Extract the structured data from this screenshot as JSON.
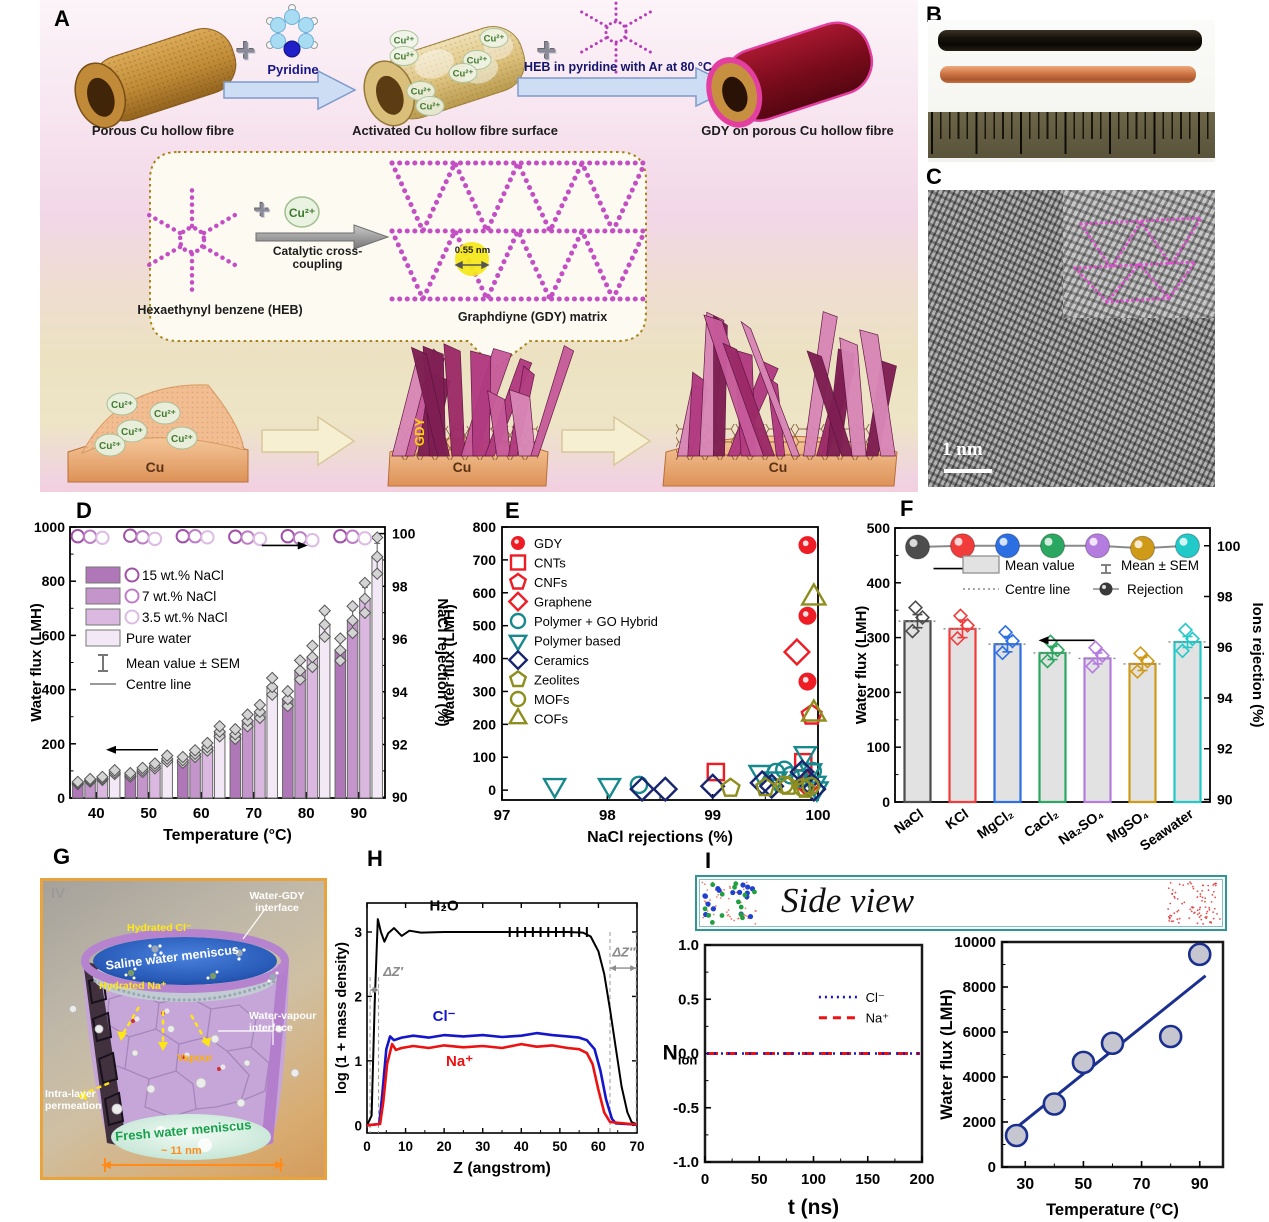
{
  "figure": {
    "plus_sign": "+"
  },
  "panelA": {
    "label": "A",
    "steps": {
      "porous_label": "Porous Cu hollow fibre",
      "pyridine_label": "Pyridine",
      "activated_label": "Activated Cu hollow fibre surface",
      "heb_arrow_label": "HEB in pyridine with Ar at 80 °C",
      "gdy_tube_label": "GDY on porous Cu hollow fibre"
    },
    "bubble": {
      "heb_name": "Hexaethynyl benzene (HEB)",
      "cu_ion": "Cu²⁺",
      "arrow_label": "Catalytic cross-coupling",
      "pore_size": "0.55 nm",
      "matrix_caption": "Graphdiyne (GDY) matrix"
    },
    "growth": {
      "cu_label": "Cu",
      "cu_ion": "Cu²⁺",
      "gdy_flake_label": "GDY"
    }
  },
  "panelB": {
    "label": "B"
  },
  "panelC": {
    "label": "C",
    "scale_bar": "1 nm"
  },
  "panelG": {
    "label": "G",
    "roman": "IV",
    "water_gdy": "Water-GDY interface",
    "hydrated_cl": "Hydrated Cl⁻",
    "saline": "Saline water meniscus",
    "hydrated_na": "Hydrated Na⁺",
    "water_vapour": "Water-vapour interface",
    "vapour": "Vapour",
    "intra": "Intra-layer permeation",
    "fresh": "Fresh water meniscus",
    "width_note": "~ 11 nm"
  },
  "panelI": {
    "label": "I",
    "side_view_label": "Side view"
  },
  "panelD_label": "D",
  "panelE_label": "E",
  "panelF_label": "F",
  "panelH_label": "H",
  "chart_data": [
    {
      "id": "D",
      "type": "bar",
      "xlabel": "Temperature (°C)",
      "ylabel_left": "Water flux (LMH)",
      "ylabel_right": "NaCl rejection (%)",
      "ylim_left": [
        0,
        1000
      ],
      "yticks_left": [
        0,
        200,
        400,
        600,
        800,
        1000
      ],
      "ylim_right": [
        90,
        100
      ],
      "yticks_right": [
        90,
        92,
        94,
        96,
        98,
        100
      ],
      "categories": [
        40,
        50,
        60,
        70,
        80,
        90
      ],
      "series": [
        {
          "name": "15 wt.% NaCl",
          "color": "#b077b8",
          "values": [
            55,
            85,
            140,
            235,
            365,
            545
          ]
        },
        {
          "name": "7 wt.% NaCl",
          "color": "#c495cb",
          "values": [
            65,
            103,
            163,
            285,
            470,
            655
          ]
        },
        {
          "name": "3.5 wt.% NaCl",
          "color": "#dab8e0",
          "values": [
            72,
            118,
            188,
            318,
            520,
            735
          ]
        },
        {
          "name": "Pure water",
          "color": "#f3e8f5",
          "values": [
            95,
            145,
            245,
            410,
            640,
            890
          ]
        }
      ],
      "sem_fraction": 0.05,
      "rejection_series": [
        {
          "name": "15 wt.% NaCl",
          "color": "#a052a8",
          "values": [
            99.9,
            99.92,
            99.9,
            99.88,
            99.9,
            99.9
          ]
        },
        {
          "name": "7 wt.% NaCl",
          "color": "#bd7ec6",
          "values": [
            99.88,
            99.86,
            99.9,
            99.85,
            99.82,
            99.88
          ]
        },
        {
          "name": "3.5 wt.% NaCl",
          "color": "#ddbce4",
          "values": [
            99.84,
            99.8,
            99.86,
            99.8,
            99.75,
            99.82
          ]
        }
      ],
      "legend_extra": [
        "Mean value ± SEM",
        "Centre line"
      ]
    },
    {
      "id": "E",
      "type": "scatter",
      "xlabel": "NaCl rejections (%)",
      "ylabel": "Water flux (LMH)",
      "xlim": [
        97,
        100
      ],
      "xticks": [
        97,
        98,
        99,
        100
      ],
      "ylim": [
        -30,
        800
      ],
      "yticks": [
        0,
        100,
        200,
        300,
        400,
        500,
        600,
        700,
        800
      ],
      "series": [
        {
          "name": "GDY",
          "marker": "circle",
          "filled": true,
          "color": "#ee1c25",
          "size": 10,
          "points": [
            [
              99.9,
              745
            ],
            [
              99.9,
              530
            ],
            [
              99.9,
              330
            ]
          ]
        },
        {
          "name": "CNTs",
          "marker": "square",
          "filled": false,
          "color": "#ee1c25",
          "size": 9,
          "points": [
            [
              99.03,
              55
            ],
            [
              99.86,
              85
            ]
          ]
        },
        {
          "name": "CNFs",
          "marker": "pentagon",
          "filled": false,
          "color": "#ee1c25",
          "size": 10,
          "points": [
            [
              99.94,
              228
            ]
          ]
        },
        {
          "name": "Graphene",
          "marker": "diamond",
          "filled": false,
          "color": "#ee1c25",
          "size": 11,
          "points": [
            [
              99.8,
              420
            ],
            [
              99.9,
              18
            ]
          ]
        },
        {
          "name": "Polymer + GO Hybrid",
          "marker": "circle",
          "filled": false,
          "color": "#17898d",
          "size": 9,
          "points": [
            [
              98.3,
              16
            ],
            [
              99.6,
              55
            ],
            [
              99.68,
              62
            ],
            [
              99.74,
              45
            ],
            [
              99.83,
              35
            ],
            [
              99.95,
              58
            ]
          ]
        },
        {
          "name": "Polymer based",
          "marker": "triangle-down",
          "filled": false,
          "color": "#17898d",
          "size": 10,
          "points": [
            [
              97.5,
              15
            ],
            [
              98.02,
              15
            ],
            [
              99.45,
              55
            ],
            [
              99.6,
              35
            ],
            [
              99.88,
              112
            ],
            [
              99.93,
              60
            ],
            [
              99.97,
              22
            ],
            [
              99.99,
              5
            ]
          ]
        },
        {
          "name": "Ceramics",
          "marker": "diamond",
          "filled": false,
          "color": "#18256e",
          "size": 10,
          "points": [
            [
              98.33,
              3
            ],
            [
              98.55,
              3
            ],
            [
              99.0,
              12
            ],
            [
              99.47,
              22
            ],
            [
              99.56,
              12
            ],
            [
              99.85,
              55
            ],
            [
              99.9,
              28
            ],
            [
              99.96,
              3
            ]
          ]
        },
        {
          "name": "Zeolites",
          "marker": "pentagon",
          "filled": false,
          "color": "#8e8e1e",
          "size": 9,
          "points": [
            [
              99.17,
              6
            ],
            [
              99.5,
              8
            ],
            [
              99.72,
              12
            ],
            [
              99.88,
              3
            ]
          ]
        },
        {
          "name": "MOFs",
          "marker": "circle",
          "filled": false,
          "color": "#8e8e1e",
          "size": 9,
          "points": [
            [
              99.68,
              16
            ],
            [
              99.85,
              8
            ],
            [
              99.93,
              12
            ]
          ]
        },
        {
          "name": "COFs",
          "marker": "triangle-up",
          "filled": false,
          "color": "#8e8e1e",
          "size": 11,
          "points": [
            [
              99.96,
              585
            ],
            [
              99.96,
              232
            ]
          ]
        }
      ]
    },
    {
      "id": "F",
      "type": "bar",
      "ylabel_left": "Water flux (LMH)",
      "ylabel_right": "Ions rejection (%)",
      "ylim_left": [
        0,
        500
      ],
      "yticks_left": [
        0,
        100,
        200,
        300,
        400,
        500
      ],
      "ylim_right": [
        90,
        100
      ],
      "yticks_right": [
        90,
        92,
        94,
        96,
        98,
        100
      ],
      "categories": [
        "NaCl",
        "KCl",
        "MgCl₂",
        "CaCl₂",
        "Na₂SO₄",
        "MgSO₄",
        "Seawater"
      ],
      "values": [
        330,
        316,
        288,
        272,
        262,
        252,
        292
      ],
      "sem": [
        12,
        16,
        14,
        12,
        10,
        12,
        10
      ],
      "bar_fill": "#e2e2e2",
      "colors": [
        "#4d4d4d",
        "#f23b3b",
        "#2b6fe3",
        "#2aa760",
        "#b57ce0",
        "#cf9a18",
        "#21c9c9"
      ],
      "rejection_values": [
        99.95,
        100,
        100,
        100,
        100,
        99.9,
        100
      ],
      "legend": [
        "Mean value",
        "Centre line",
        "Mean ± SEM",
        "Rejection"
      ]
    },
    {
      "id": "H",
      "type": "line",
      "xlabel": "Z (angstrom)",
      "ylabel": "log (1 + mass density)",
      "xlim": [
        0,
        70
      ],
      "xticks": [
        0,
        10,
        20,
        30,
        40,
        50,
        60,
        70
      ],
      "ylim": [
        -0.12,
        3.45
      ],
      "yticks": [
        0,
        1,
        2,
        3
      ],
      "guides_x": [
        0.8,
        3.0,
        63.0,
        69.8
      ],
      "annotations": {
        "dz_left": "ΔZ′",
        "dz_right": "ΔZ″"
      },
      "plateau_marks_x": [
        37,
        39,
        41,
        43,
        45,
        47,
        49,
        51,
        53,
        55,
        57
      ],
      "series": [
        {
          "name": "H₂O",
          "color": "#000000",
          "points": [
            [
              0,
              0
            ],
            [
              1.2,
              0.15
            ],
            [
              2,
              1.9
            ],
            [
              2.8,
              3.2
            ],
            [
              3.6,
              3.0
            ],
            [
              4.5,
              2.85
            ],
            [
              5.5,
              2.98
            ],
            [
              7,
              3.06
            ],
            [
              9,
              2.94
            ],
            [
              11,
              3.02
            ],
            [
              14,
              2.99
            ],
            [
              20,
              3.0
            ],
            [
              28,
              3.0
            ],
            [
              36,
              3.0
            ],
            [
              45,
              3.0
            ],
            [
              52,
              3.0
            ],
            [
              56,
              2.99
            ],
            [
              58,
              2.93
            ],
            [
              60,
              2.7
            ],
            [
              61.5,
              2.35
            ],
            [
              63,
              1.8
            ],
            [
              64.5,
              1.2
            ],
            [
              66,
              0.6
            ],
            [
              67.5,
              0.2
            ],
            [
              68.6,
              0.05
            ],
            [
              70,
              0.01
            ]
          ]
        },
        {
          "name": "Cl⁻",
          "color": "#1515cc",
          "points": [
            [
              0,
              0
            ],
            [
              3.2,
              0.02
            ],
            [
              4,
              0.5
            ],
            [
              5,
              1.18
            ],
            [
              6,
              1.38
            ],
            [
              7,
              1.32
            ],
            [
              9,
              1.36
            ],
            [
              12,
              1.39
            ],
            [
              16,
              1.36
            ],
            [
              20,
              1.4
            ],
            [
              25,
              1.38
            ],
            [
              30,
              1.4
            ],
            [
              35,
              1.37
            ],
            [
              40,
              1.39
            ],
            [
              44,
              1.43
            ],
            [
              48,
              1.4
            ],
            [
              52,
              1.38
            ],
            [
              55,
              1.36
            ],
            [
              57,
              1.32
            ],
            [
              59,
              1.18
            ],
            [
              60.5,
              0.85
            ],
            [
              62,
              0.4
            ],
            [
              63.5,
              0.1
            ],
            [
              64.5,
              0.03
            ],
            [
              70,
              0.01
            ]
          ]
        },
        {
          "name": "Na⁺",
          "color": "#ee1111",
          "points": [
            [
              0,
              0
            ],
            [
              3.4,
              0.02
            ],
            [
              4.2,
              0.35
            ],
            [
              5.2,
              0.95
            ],
            [
              6.5,
              1.26
            ],
            [
              7.5,
              1.17
            ],
            [
              9,
              1.2
            ],
            [
              12,
              1.23
            ],
            [
              16,
              1.2
            ],
            [
              20,
              1.24
            ],
            [
              25,
              1.21
            ],
            [
              30,
              1.23
            ],
            [
              35,
              1.2
            ],
            [
              40,
              1.26
            ],
            [
              44,
              1.22
            ],
            [
              48,
              1.24
            ],
            [
              52,
              1.2
            ],
            [
              55,
              1.18
            ],
            [
              57,
              1.12
            ],
            [
              58.5,
              0.95
            ],
            [
              60,
              0.55
            ],
            [
              61.5,
              0.2
            ],
            [
              63,
              0.05
            ],
            [
              70,
              0.01
            ]
          ]
        }
      ]
    },
    {
      "id": "I_nion",
      "type": "line",
      "xlabel": "t (ns)",
      "ylabel_main": "N",
      "ylabel_sub": "ion",
      "xlim": [
        0,
        200
      ],
      "xticks": [
        0,
        50,
        100,
        150,
        200
      ],
      "ylim": [
        -1.0,
        1.0
      ],
      "yticks": [
        "1.0",
        "0.5",
        "0.0",
        "-0.5",
        "-1.0"
      ],
      "series": [
        {
          "name": "Cl⁻",
          "color": "#1515cc",
          "style": "dotted",
          "value": 0.0
        },
        {
          "name": "Na⁺",
          "color": "#ee1111",
          "style": "dashed",
          "value": 0.0
        }
      ]
    },
    {
      "id": "I_flux",
      "type": "scatter",
      "xlabel": "Temperature (°C)",
      "ylabel": "Water flux (LMH)",
      "xlim": [
        22,
        98
      ],
      "xticks": [
        30,
        50,
        70,
        90
      ],
      "ylim": [
        0,
        10000
      ],
      "yticks": [
        0,
        2000,
        4000,
        6000,
        8000,
        10000
      ],
      "points": [
        [
          27,
          1400
        ],
        [
          40,
          2800
        ],
        [
          50,
          4650
        ],
        [
          60,
          5500
        ],
        [
          80,
          5800
        ],
        [
          90,
          9450
        ]
      ],
      "trend": [
        [
          25,
          1550
        ],
        [
          92,
          8500
        ]
      ],
      "point_fill": "#c6c6d0",
      "accent": "#1a2f8f"
    }
  ]
}
